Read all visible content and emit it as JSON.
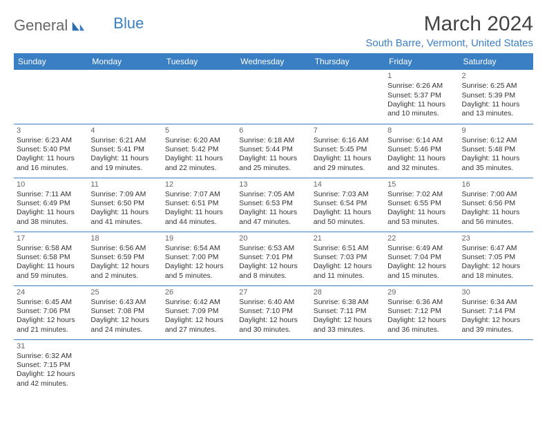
{
  "logo": {
    "text1": "General",
    "text2": "Blue"
  },
  "title": "March 2024",
  "location": "South Barre, Vermont, United States",
  "colors": {
    "header_bg": "#3a7fc4",
    "header_text": "#ffffff",
    "border": "#3a7fc4",
    "title_color": "#444444",
    "location_color": "#3a7fc4",
    "body_text": "#333333",
    "daynum_color": "#666666",
    "background": "#ffffff"
  },
  "typography": {
    "title_fontsize": 30,
    "location_fontsize": 15,
    "header_fontsize": 12,
    "cell_fontsize": 10.5,
    "font_family": "Arial"
  },
  "day_headers": [
    "Sunday",
    "Monday",
    "Tuesday",
    "Wednesday",
    "Thursday",
    "Friday",
    "Saturday"
  ],
  "weeks": [
    [
      null,
      null,
      null,
      null,
      null,
      {
        "n": "1",
        "sr": "Sunrise: 6:26 AM",
        "ss": "Sunset: 5:37 PM",
        "d1": "Daylight: 11 hours",
        "d2": "and 10 minutes."
      },
      {
        "n": "2",
        "sr": "Sunrise: 6:25 AM",
        "ss": "Sunset: 5:39 PM",
        "d1": "Daylight: 11 hours",
        "d2": "and 13 minutes."
      }
    ],
    [
      {
        "n": "3",
        "sr": "Sunrise: 6:23 AM",
        "ss": "Sunset: 5:40 PM",
        "d1": "Daylight: 11 hours",
        "d2": "and 16 minutes."
      },
      {
        "n": "4",
        "sr": "Sunrise: 6:21 AM",
        "ss": "Sunset: 5:41 PM",
        "d1": "Daylight: 11 hours",
        "d2": "and 19 minutes."
      },
      {
        "n": "5",
        "sr": "Sunrise: 6:20 AM",
        "ss": "Sunset: 5:42 PM",
        "d1": "Daylight: 11 hours",
        "d2": "and 22 minutes."
      },
      {
        "n": "6",
        "sr": "Sunrise: 6:18 AM",
        "ss": "Sunset: 5:44 PM",
        "d1": "Daylight: 11 hours",
        "d2": "and 25 minutes."
      },
      {
        "n": "7",
        "sr": "Sunrise: 6:16 AM",
        "ss": "Sunset: 5:45 PM",
        "d1": "Daylight: 11 hours",
        "d2": "and 29 minutes."
      },
      {
        "n": "8",
        "sr": "Sunrise: 6:14 AM",
        "ss": "Sunset: 5:46 PM",
        "d1": "Daylight: 11 hours",
        "d2": "and 32 minutes."
      },
      {
        "n": "9",
        "sr": "Sunrise: 6:12 AM",
        "ss": "Sunset: 5:48 PM",
        "d1": "Daylight: 11 hours",
        "d2": "and 35 minutes."
      }
    ],
    [
      {
        "n": "10",
        "sr": "Sunrise: 7:11 AM",
        "ss": "Sunset: 6:49 PM",
        "d1": "Daylight: 11 hours",
        "d2": "and 38 minutes."
      },
      {
        "n": "11",
        "sr": "Sunrise: 7:09 AM",
        "ss": "Sunset: 6:50 PM",
        "d1": "Daylight: 11 hours",
        "d2": "and 41 minutes."
      },
      {
        "n": "12",
        "sr": "Sunrise: 7:07 AM",
        "ss": "Sunset: 6:51 PM",
        "d1": "Daylight: 11 hours",
        "d2": "and 44 minutes."
      },
      {
        "n": "13",
        "sr": "Sunrise: 7:05 AM",
        "ss": "Sunset: 6:53 PM",
        "d1": "Daylight: 11 hours",
        "d2": "and 47 minutes."
      },
      {
        "n": "14",
        "sr": "Sunrise: 7:03 AM",
        "ss": "Sunset: 6:54 PM",
        "d1": "Daylight: 11 hours",
        "d2": "and 50 minutes."
      },
      {
        "n": "15",
        "sr": "Sunrise: 7:02 AM",
        "ss": "Sunset: 6:55 PM",
        "d1": "Daylight: 11 hours",
        "d2": "and 53 minutes."
      },
      {
        "n": "16",
        "sr": "Sunrise: 7:00 AM",
        "ss": "Sunset: 6:56 PM",
        "d1": "Daylight: 11 hours",
        "d2": "and 56 minutes."
      }
    ],
    [
      {
        "n": "17",
        "sr": "Sunrise: 6:58 AM",
        "ss": "Sunset: 6:58 PM",
        "d1": "Daylight: 11 hours",
        "d2": "and 59 minutes."
      },
      {
        "n": "18",
        "sr": "Sunrise: 6:56 AM",
        "ss": "Sunset: 6:59 PM",
        "d1": "Daylight: 12 hours",
        "d2": "and 2 minutes."
      },
      {
        "n": "19",
        "sr": "Sunrise: 6:54 AM",
        "ss": "Sunset: 7:00 PM",
        "d1": "Daylight: 12 hours",
        "d2": "and 5 minutes."
      },
      {
        "n": "20",
        "sr": "Sunrise: 6:53 AM",
        "ss": "Sunset: 7:01 PM",
        "d1": "Daylight: 12 hours",
        "d2": "and 8 minutes."
      },
      {
        "n": "21",
        "sr": "Sunrise: 6:51 AM",
        "ss": "Sunset: 7:03 PM",
        "d1": "Daylight: 12 hours",
        "d2": "and 11 minutes."
      },
      {
        "n": "22",
        "sr": "Sunrise: 6:49 AM",
        "ss": "Sunset: 7:04 PM",
        "d1": "Daylight: 12 hours",
        "d2": "and 15 minutes."
      },
      {
        "n": "23",
        "sr": "Sunrise: 6:47 AM",
        "ss": "Sunset: 7:05 PM",
        "d1": "Daylight: 12 hours",
        "d2": "and 18 minutes."
      }
    ],
    [
      {
        "n": "24",
        "sr": "Sunrise: 6:45 AM",
        "ss": "Sunset: 7:06 PM",
        "d1": "Daylight: 12 hours",
        "d2": "and 21 minutes."
      },
      {
        "n": "25",
        "sr": "Sunrise: 6:43 AM",
        "ss": "Sunset: 7:08 PM",
        "d1": "Daylight: 12 hours",
        "d2": "and 24 minutes."
      },
      {
        "n": "26",
        "sr": "Sunrise: 6:42 AM",
        "ss": "Sunset: 7:09 PM",
        "d1": "Daylight: 12 hours",
        "d2": "and 27 minutes."
      },
      {
        "n": "27",
        "sr": "Sunrise: 6:40 AM",
        "ss": "Sunset: 7:10 PM",
        "d1": "Daylight: 12 hours",
        "d2": "and 30 minutes."
      },
      {
        "n": "28",
        "sr": "Sunrise: 6:38 AM",
        "ss": "Sunset: 7:11 PM",
        "d1": "Daylight: 12 hours",
        "d2": "and 33 minutes."
      },
      {
        "n": "29",
        "sr": "Sunrise: 6:36 AM",
        "ss": "Sunset: 7:12 PM",
        "d1": "Daylight: 12 hours",
        "d2": "and 36 minutes."
      },
      {
        "n": "30",
        "sr": "Sunrise: 6:34 AM",
        "ss": "Sunset: 7:14 PM",
        "d1": "Daylight: 12 hours",
        "d2": "and 39 minutes."
      }
    ],
    [
      {
        "n": "31",
        "sr": "Sunrise: 6:32 AM",
        "ss": "Sunset: 7:15 PM",
        "d1": "Daylight: 12 hours",
        "d2": "and 42 minutes."
      },
      null,
      null,
      null,
      null,
      null,
      null
    ]
  ]
}
